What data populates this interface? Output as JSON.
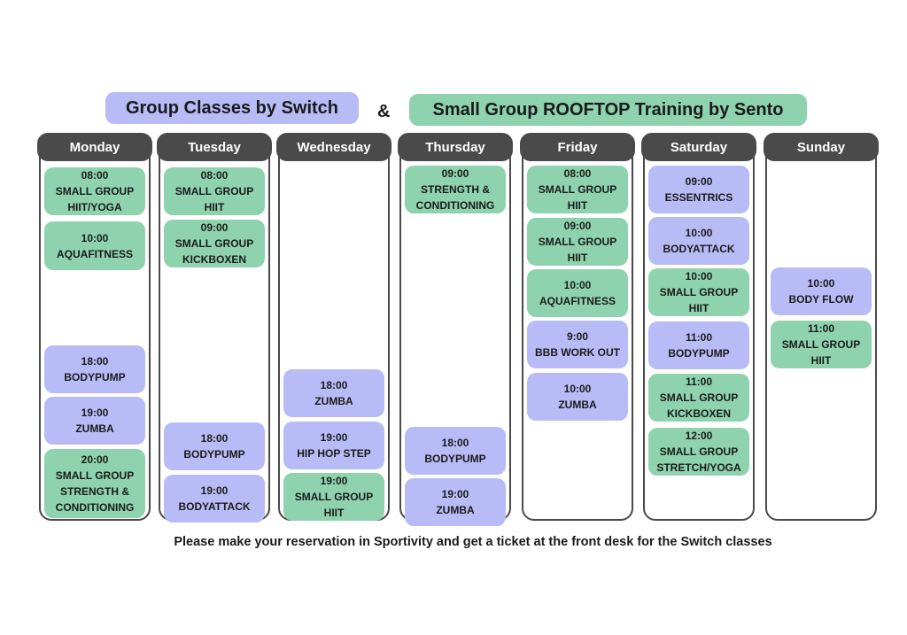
{
  "header": {
    "switch_label": "Group Classes by Switch",
    "switch_color": "#b7bcf7",
    "ampersand": "&",
    "sento_label": "Small Group ROOFTOP Training by Sento",
    "sento_color": "#8fd3ae"
  },
  "days": [
    {
      "name": "Monday",
      "classes": [
        {
          "time": "08:00",
          "name": "SMALL GROUP HIIT/YOGA",
          "color": "#8fd3ae"
        },
        {
          "time": "10:00",
          "name": "AQUAFITNESS",
          "color": "#8fd3ae"
        },
        {
          "time": "18:00",
          "name": "BODYPUMP",
          "color": "#b7bcf7"
        },
        {
          "time": "19:00",
          "name": "ZUMBA",
          "color": "#b7bcf7"
        },
        {
          "time": "20:00",
          "name": "SMALL GROUP STRENGTH & CONDITIONING",
          "color": "#8fd3ae"
        }
      ]
    },
    {
      "name": "Tuesday",
      "classes": [
        {
          "time": "08:00",
          "name": "SMALL GROUP HIIT",
          "color": "#8fd3ae"
        },
        {
          "time": "09:00",
          "name": "SMALL GROUP KICKBOXEN",
          "color": "#8fd3ae"
        },
        {
          "time": "18:00",
          "name": "BODYPUMP",
          "color": "#b7bcf7"
        },
        {
          "time": "19:00",
          "name": "BODYATTACK",
          "color": "#b7bcf7"
        }
      ]
    },
    {
      "name": "Wednesday",
      "classes": [
        {
          "time": "18:00",
          "name": "ZUMBA",
          "color": "#b7bcf7"
        },
        {
          "time": "19:00",
          "name": "HIP HOP STEP",
          "color": "#b7bcf7"
        },
        {
          "time": "19:00",
          "name": "SMALL GROUP HIIT",
          "color": "#8fd3ae"
        }
      ]
    },
    {
      "name": "Thursday",
      "classes": [
        {
          "time": "09:00",
          "name": "STRENGTH & CONDITIONING",
          "color": "#8fd3ae"
        },
        {
          "time": "18:00",
          "name": "BODYPUMP",
          "color": "#b7bcf7"
        },
        {
          "time": "19:00",
          "name": "ZUMBA",
          "color": "#b7bcf7"
        }
      ]
    },
    {
      "name": "Friday",
      "classes": [
        {
          "time": "08:00",
          "name": "SMALL GROUP HIIT",
          "color": "#8fd3ae"
        },
        {
          "time": "09:00",
          "name": "SMALL GROUP HIIT",
          "color": "#8fd3ae"
        },
        {
          "time": "10:00",
          "name": "AQUAFITNESS",
          "color": "#8fd3ae"
        },
        {
          "time": "9:00",
          "name": "BBB WORK OUT",
          "color": "#b7bcf7"
        },
        {
          "time": "10:00",
          "name": "ZUMBA",
          "color": "#b7bcf7"
        }
      ]
    },
    {
      "name": "Saturday",
      "classes": [
        {
          "time": "09:00",
          "name": "ESSENTRICS",
          "color": "#b7bcf7"
        },
        {
          "time": "10:00",
          "name": "BODYATTACK",
          "color": "#b7bcf7"
        },
        {
          "time": "10:00",
          "name": "SMALL GROUP HIIT",
          "color": "#8fd3ae"
        },
        {
          "time": "11:00",
          "name": "BODYPUMP",
          "color": "#b7bcf7"
        },
        {
          "time": "11:00",
          "name": "SMALL GROUP KICKBOXEN",
          "color": "#8fd3ae"
        },
        {
          "time": "12:00",
          "name": "SMALL GROUP STRETCH/YOGA",
          "color": "#8fd3ae"
        }
      ]
    },
    {
      "name": "Sunday",
      "classes": [
        {
          "time": "10:00",
          "name": "BODY FLOW",
          "color": "#b7bcf7"
        },
        {
          "time": "11:00",
          "name": "SMALL GROUP HIIT",
          "color": "#8fd3ae"
        }
      ]
    }
  ],
  "footer": "Please make your reservation in Sportivity and get a ticket at the front desk for the Switch classes"
}
